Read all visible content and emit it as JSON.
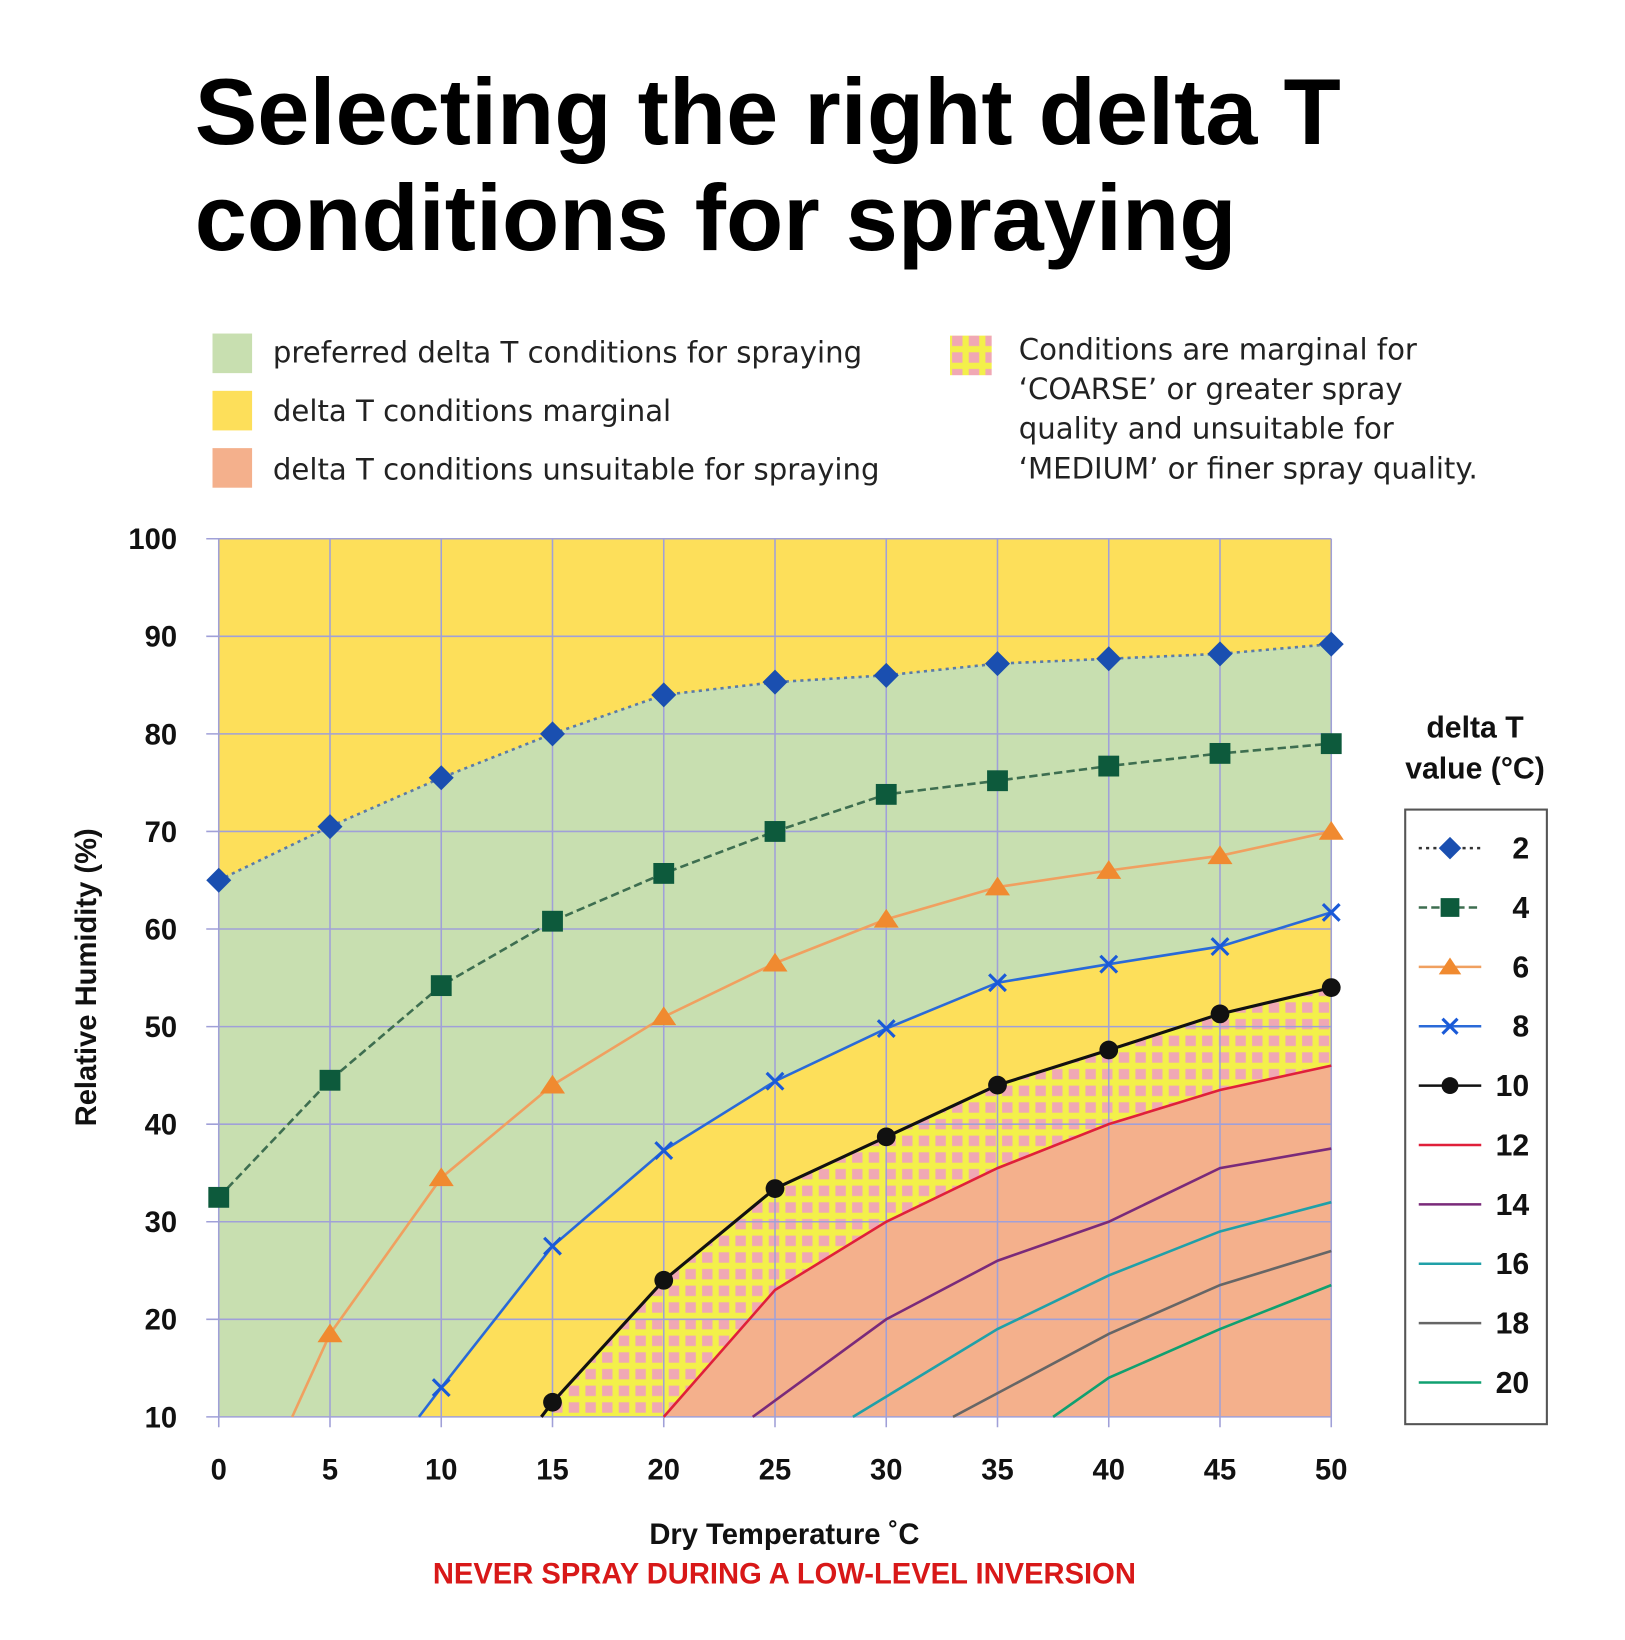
{
  "title_lines": [
    "Selecting the right delta T",
    "conditions for spraying"
  ],
  "zone_legend": [
    {
      "label": "preferred delta T conditions for spraying",
      "color": "#c8dfb0"
    },
    {
      "label": "delta T conditions marginal",
      "color": "#fddf5a"
    },
    {
      "label": "delta T conditions unsuitable for spraying",
      "color": "#f4b08c"
    }
  ],
  "hatch_legend": {
    "lines": [
      "Conditions are marginal for",
      "‘COARSE’ or greater spray",
      "quality and unsuitable for",
      "‘MEDIUM’ or finer spray quality."
    ],
    "colors": {
      "base": "#f3f04a",
      "squares": "#f0a8b4"
    }
  },
  "warning": "NEVER SPRAY DURING A LOW-LEVEL INVERSION",
  "chart_data": {
    "type": "line",
    "title": "",
    "xlabel": "Dry Temperature ˚C",
    "ylabel": "Relative Humidity (%)",
    "xlim": [
      0,
      50
    ],
    "ylim": [
      10,
      100
    ],
    "xticks": [
      "0",
      "5",
      "10",
      "15",
      "20",
      "25",
      "30",
      "35",
      "40",
      "45",
      "50"
    ],
    "yticks": [
      "10",
      "20",
      "30",
      "40",
      "50",
      "60",
      "70",
      "80",
      "90",
      "100"
    ],
    "grid": true,
    "legend_title": [
      "delta T",
      "value (°C)"
    ],
    "legend_position": "right",
    "colors": {
      "marginal": "#fddf5a",
      "preferred": "#c8dfb0",
      "unsuitable": "#f4b08c",
      "grid": "#a0a0d8"
    },
    "series": [
      {
        "name": "2",
        "marker": "diamond",
        "color": "#1a4fb0",
        "line": "#5a7aa8",
        "dash": "3,4",
        "x": [
          0,
          5,
          10,
          15,
          20,
          25,
          30,
          35,
          40,
          45,
          50
        ],
        "y": [
          65,
          70.5,
          75.5,
          80,
          84,
          85.3,
          86,
          87.2,
          87.7,
          88.2,
          89.2
        ]
      },
      {
        "name": "4",
        "marker": "square",
        "color": "#0d5a3c",
        "line": "#3e6e50",
        "dash": "8,4",
        "x": [
          0,
          5,
          10,
          15,
          20,
          25,
          30,
          35,
          40,
          45,
          50
        ],
        "y": [
          32.5,
          44.5,
          54.2,
          60.8,
          65.7,
          70,
          73.8,
          75.2,
          76.7,
          78,
          79
        ]
      },
      {
        "name": "6",
        "marker": "triangle",
        "color": "#f08a30",
        "line": "#f0a060",
        "dash": "",
        "x": [
          3.3,
          5,
          10,
          15,
          20,
          25,
          30,
          35,
          40,
          45,
          50
        ],
        "y": [
          10,
          18.5,
          34.5,
          44,
          51,
          56.5,
          61,
          64.3,
          66,
          67.5,
          70
        ]
      },
      {
        "name": "8",
        "marker": "x",
        "color": "#1a5ad8",
        "line": "#2a6ad8",
        "dash": "",
        "x": [
          9,
          10,
          15,
          20,
          25,
          30,
          35,
          40,
          45,
          50
        ],
        "y": [
          10,
          13,
          27.5,
          37.3,
          44.4,
          49.8,
          54.5,
          56.4,
          58.2,
          61.7
        ]
      },
      {
        "name": "10",
        "marker": "circle",
        "color": "#111111",
        "line": "#111111",
        "dash": "",
        "x": [
          14.5,
          15,
          20,
          25,
          30,
          35,
          40,
          45,
          50
        ],
        "y": [
          10,
          11.5,
          24,
          33.4,
          38.7,
          44,
          47.6,
          51.3,
          54
        ]
      },
      {
        "name": "12",
        "marker": "none",
        "color": "#e0203a",
        "line": "#e0203a",
        "dash": "",
        "x": [
          20,
          25,
          30,
          35,
          40,
          45,
          50
        ],
        "y": [
          10,
          23,
          30,
          35.5,
          40,
          43.5,
          46
        ]
      },
      {
        "name": "14",
        "marker": "none",
        "color": "#7a2a7a",
        "line": "#7a2a7a",
        "dash": "",
        "x": [
          24,
          30,
          35,
          40,
          45,
          50
        ],
        "y": [
          10,
          20,
          26,
          30,
          35.5,
          37.5
        ]
      },
      {
        "name": "16",
        "marker": "none",
        "color": "#20a0a8",
        "line": "#20a0a8",
        "dash": "",
        "x": [
          28.5,
          35,
          40,
          45,
          50
        ],
        "y": [
          10,
          19,
          24.5,
          29,
          32
        ]
      },
      {
        "name": "18",
        "marker": "none",
        "color": "#666666",
        "line": "#666666",
        "dash": "",
        "x": [
          33,
          40,
          45,
          50
        ],
        "y": [
          10,
          18.5,
          23.5,
          27
        ]
      },
      {
        "name": "20",
        "marker": "none",
        "color": "#10a070",
        "line": "#10a070",
        "dash": "",
        "x": [
          37.5,
          40,
          45,
          50
        ],
        "y": [
          10,
          14,
          19,
          23.5
        ]
      }
    ]
  }
}
